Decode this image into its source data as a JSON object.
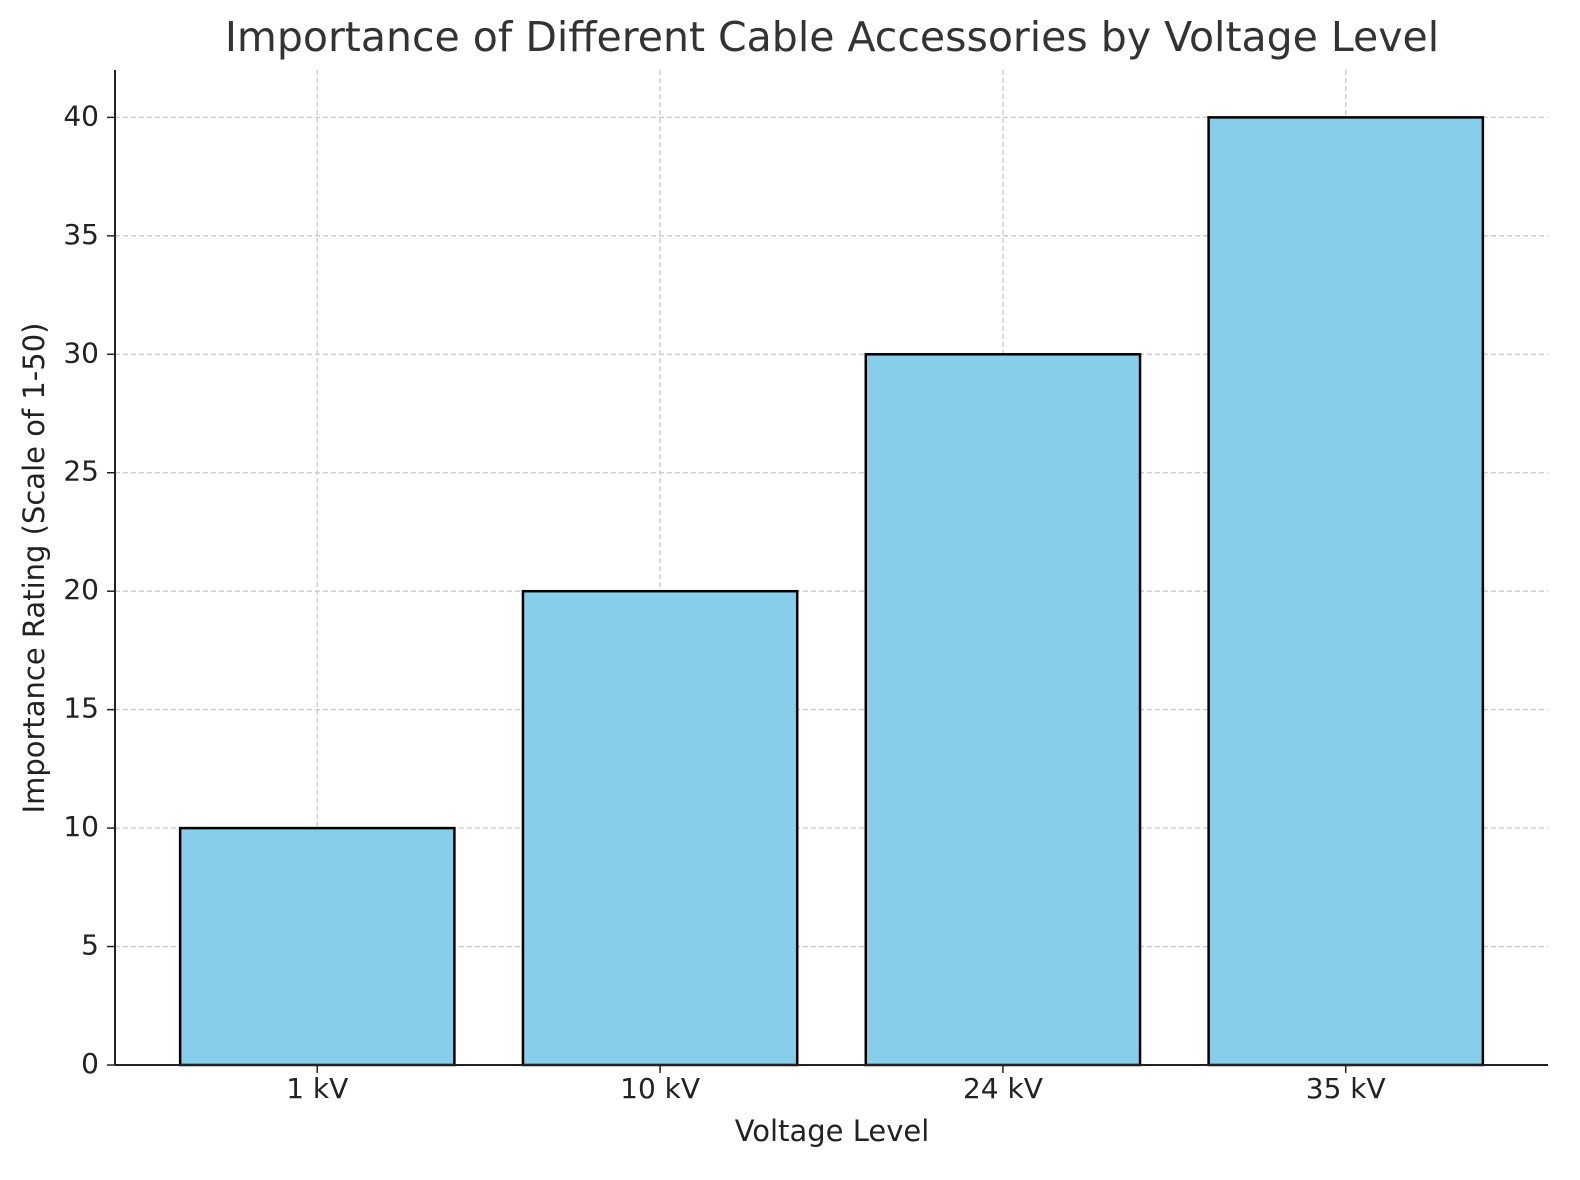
{
  "chart_data": {
    "type": "bar",
    "title": "Importance of Different Cable Accessories by Voltage Level",
    "x_label": "Voltage Level",
    "y_label": "Importance Rating (Scale of 1-50)",
    "categories": [
      "1 kV",
      "10 kV",
      "24 kV",
      "35 kV"
    ],
    "values": [
      10,
      20,
      30,
      40
    ],
    "color": "#87ceeb",
    "edge_color": "#000000",
    "ylim": [
      0,
      42
    ],
    "yticks": [
      0,
      5,
      10,
      15,
      20,
      25,
      30,
      35,
      40
    ],
    "grid": true
  }
}
